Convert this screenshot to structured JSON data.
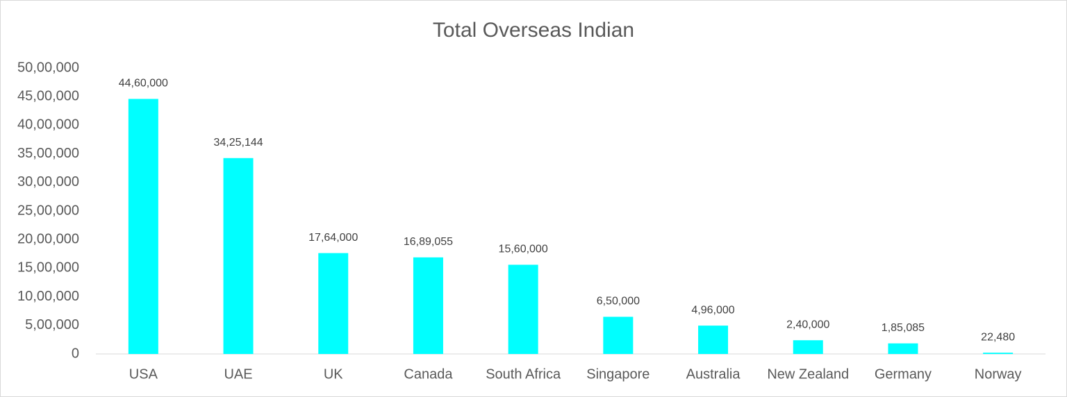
{
  "chart_data": {
    "type": "bar",
    "title": "Total Overseas Indian",
    "categories": [
      "USA",
      "UAE",
      "UK",
      "Canada",
      "South Africa",
      "Singapore",
      "Australia",
      "New Zealand",
      "Germany",
      "Norway"
    ],
    "values": [
      4460000,
      3425144,
      1764000,
      1689055,
      1560000,
      650000,
      496000,
      240000,
      185085,
      22480
    ],
    "value_labels": [
      "44,60,000",
      "34,25,144",
      "17,64,000",
      "16,89,055",
      "15,60,000",
      "6,50,000",
      "4,96,000",
      "2,40,000",
      "1,85,085",
      "22,480"
    ],
    "color": "#00ffff",
    "ylim": [
      0,
      5000000
    ],
    "yticks": [
      0,
      {
        "value": 500000,
        "label": "5,00,000"
      },
      {
        "value": 1000000,
        "label": "10,00,000"
      },
      {
        "value": 1500000,
        "label": "15,00,000"
      },
      {
        "value": 2000000,
        "label": "20,00,000"
      },
      {
        "value": 2500000,
        "label": "25,00,000"
      },
      {
        "value": 3000000,
        "label": "30,00,000"
      },
      {
        "value": 3500000,
        "label": "35,00,000"
      },
      {
        "value": 4000000,
        "label": "40,00,000"
      },
      {
        "value": 4500000,
        "label": "45,00,000"
      },
      {
        "value": 5000000,
        "label": "50,00,000"
      }
    ],
    "grid": false
  }
}
